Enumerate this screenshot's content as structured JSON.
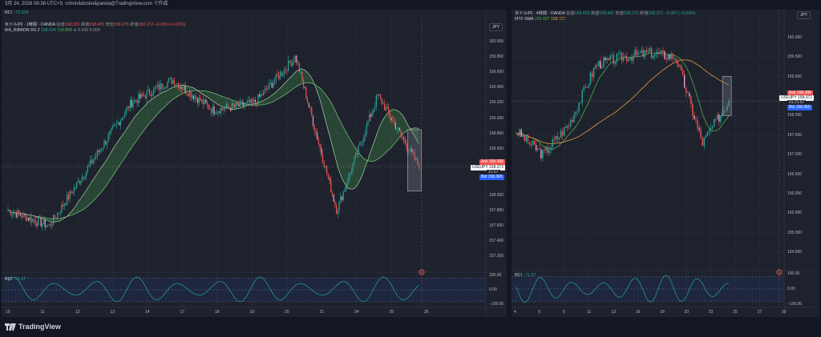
{
  "topbar": {
    "text": "3月 24, 2026 08:38 UTC+9,  crimin&dosko&panda@TradingView.com で作成"
  },
  "left": {
    "rci_top_label": "RCI",
    "rci_top_value": "−75.024",
    "title": "米ドル/円 · 1時間 · OANDA",
    "ohlc": {
      "o_label": "始値",
      "o": "158.332",
      "h_label": "高値",
      "h": "158.405",
      "l_label": "安値",
      "l": "158.276",
      "c_label": "終値",
      "c": "158.372",
      "chg": "+0.039 (+0.02%)"
    },
    "indicator": {
      "name": "MA_RIBBON RS 2",
      "v1": "158.934",
      "v2": "158.888",
      "v3": "0.000",
      "v4": "0.000"
    },
    "currency": "JPY",
    "y_ticks": [
      "160.000",
      "159.800",
      "159.600",
      "159.400",
      "159.200",
      "159.000",
      "158.800",
      "158.600",
      "158.400",
      "158.200",
      "158.000",
      "157.800",
      "157.600",
      "157.400",
      "157.200"
    ],
    "x_ticks": [
      "10",
      "11",
      "12",
      "13",
      "14",
      "17",
      "18",
      "19",
      "20",
      "21",
      "24",
      "25",
      "26"
    ],
    "tags": {
      "ask_label": "Ask",
      "ask": "158.388",
      "sym": "USDJPY",
      "last": "158.372",
      "countdown": "21:57",
      "bid_label": "Bid",
      "bid": "158.365"
    },
    "rci_label": "RCI",
    "rci_value": "−71.67",
    "rci_ticks": [
      "100.00",
      "0.00",
      "−100.00"
    ]
  },
  "right": {
    "title": "米ドル/円 · 4時間 · OANDA",
    "ohlc": {
      "o_label": "始値",
      "o": "158.429",
      "h_label": "高値",
      "h": "158.442",
      "l_label": "安値",
      "l": "158.276",
      "c_label": "終値",
      "c": "158.372",
      "chg": "−0.057 (−0.04%)"
    },
    "indicator": {
      "name": "MTF-SMA",
      "v1": "158.937",
      "v2": "158.727"
    },
    "currency": "JPY",
    "y_ticks": [
      "160.000",
      "159.500",
      "159.000",
      "158.500",
      "158.000",
      "157.500",
      "157.000",
      "156.500",
      "156.000",
      "155.500",
      "155.000",
      "154.500"
    ],
    "x_ticks": [
      "4",
      "6",
      "9",
      "11",
      "13",
      "16",
      "18",
      "20",
      "23",
      "25",
      "27",
      "30"
    ],
    "tags": {
      "ask_label": "Ask",
      "ask": "158.388",
      "sym": "USDJPY",
      "last": "158.372",
      "countdown": "01:21:57",
      "bid_label": "Bid",
      "bid": "158.365"
    },
    "rci_label": "RCI",
    "rci_value": "−71.67",
    "rci_ticks": [
      "100.00",
      "0.00",
      "−100.00"
    ]
  },
  "brand": "TradingView",
  "chart_data": [
    {
      "type": "line",
      "title": "米ドル/円 · 1時間 · OANDA",
      "ylim": [
        157.1,
        160.1
      ],
      "x": [
        "10",
        "11",
        "12",
        "13",
        "14",
        "17",
        "18",
        "19",
        "20",
        "21",
        "24"
      ],
      "series": [
        {
          "name": "",
          "values": [
            157.8,
            157.6,
            158.4,
            159.2,
            159.5,
            159.1,
            159.2,
            159.8,
            157.8,
            159.3,
            158.37
          ]
        }
      ]
    },
    {
      "type": "line",
      "title": "米ドル/円 · 4時間 · OANDA",
      "ylim": [
        154.2,
        160.3
      ],
      "x": [
        "4",
        "6",
        "9",
        "11",
        "13",
        "16",
        "18",
        "20",
        "23"
      ],
      "series": [
        {
          "name": "",
          "values": [
            157.6,
            157.0,
            157.8,
            159.3,
            159.5,
            159.6,
            159.5,
            157.3,
            158.37
          ]
        }
      ]
    }
  ]
}
